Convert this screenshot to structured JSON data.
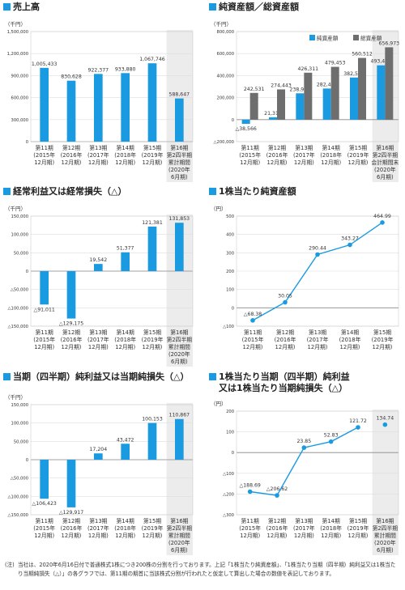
{
  "colors": {
    "accent": "#1a9ae0",
    "gray": "#6e6e6e",
    "highlight": "#ececec",
    "axis": "#cccccc",
    "text": "#333333"
  },
  "note": {
    "label": "(注)",
    "text": "当社は、2020年6月16日付で普通株式1株につき200株の分割を行っております。上記「1株当たり純資産額」、「1株当たり当期（四半期）純利益又は1株当たり当期純損失（△）」の各グラフでは、第11期の期首に当該株式分割が行われたと仮定して算出した場合の数値を表記しております。"
  },
  "chart_data": [
    {
      "id": "sales",
      "type": "bar",
      "title": "売上高",
      "unit": "（千円）",
      "categories": [
        [
          "第11期",
          "(2015年",
          "12月期)"
        ],
        [
          "第12期",
          "(2016年",
          "12月期)"
        ],
        [
          "第13期",
          "(2017年",
          "12月期)"
        ],
        [
          "第14期",
          "(2018年",
          "12月期)"
        ],
        [
          "第15期",
          "(2019年",
          "12月期)"
        ],
        [
          "第16期",
          "第2四半期",
          "累計期間",
          "(2020年",
          "6月期)"
        ]
      ],
      "ylim": [
        0,
        1500000
      ],
      "yticks": [
        0,
        300000,
        600000,
        900000,
        1200000,
        1500000
      ],
      "yticklabels": [
        "0",
        "300,000",
        "600,000",
        "900,000",
        "1,200,000",
        "1,500,000"
      ],
      "highlight_last": true,
      "series": [
        {
          "values": [
            1005433,
            830628,
            922377,
            933880,
            1067746,
            588647
          ],
          "labels": [
            "1,005,433",
            "830,628",
            "922,377",
            "933,880",
            "1,067,746",
            "588,647"
          ]
        }
      ]
    },
    {
      "id": "net_assets",
      "type": "bar",
      "title": "純資産額／総資産額",
      "unit": "（千円）",
      "categories": [
        [
          "第11期",
          "(2015年",
          "12月期)"
        ],
        [
          "第12期",
          "(2016年",
          "12月期)"
        ],
        [
          "第13期",
          "(2017年",
          "12月期)"
        ],
        [
          "第14期",
          "(2018年",
          "12月期)"
        ],
        [
          "第15期",
          "(2019年",
          "12月期)"
        ],
        [
          "第16期",
          "第2四半期",
          "会計期間末",
          "(2020年",
          "6月期)"
        ]
      ],
      "ylim": [
        -200000,
        800000
      ],
      "yticks": [
        -200000,
        0,
        200000,
        400000,
        600000,
        800000
      ],
      "yticklabels": [
        "△200,000",
        "0",
        "200,000",
        "400,000",
        "600,000",
        "800,000"
      ],
      "highlight_last": true,
      "legend": [
        "純資産額",
        "総資産額"
      ],
      "series": [
        {
          "name": "純資産額",
          "values": [
            -38566,
            21315,
            238970,
            282442,
            382585,
            493462
          ],
          "labels": [
            "△38,566",
            "21,315",
            "238,970",
            "282,442",
            "382,585",
            "493,462"
          ]
        },
        {
          "name": "総資産額",
          "values": [
            242531,
            274443,
            426311,
            479453,
            560512,
            656973
          ],
          "labels": [
            "242,531",
            "274,443",
            "426,311",
            "479,453",
            "560,512",
            "656,973"
          ]
        }
      ]
    },
    {
      "id": "ordinary_income",
      "type": "bar",
      "title": "経常利益又は経常損失（△）",
      "unit": "（千円）",
      "categories": [
        [
          "第11期",
          "(2015年",
          "12月期)"
        ],
        [
          "第12期",
          "(2016年",
          "12月期)"
        ],
        [
          "第13期",
          "(2017年",
          "12月期)"
        ],
        [
          "第14期",
          "(2018年",
          "12月期)"
        ],
        [
          "第15期",
          "(2019年",
          "12月期)"
        ],
        [
          "第16期",
          "第2四半期",
          "累計期間",
          "(2020年",
          "6月期)"
        ]
      ],
      "ylim": [
        -150000,
        150000
      ],
      "yticks": [
        -150000,
        -100000,
        -50000,
        0,
        50000,
        100000,
        150000
      ],
      "yticklabels": [
        "△150,000",
        "△100,000",
        "△50,000",
        "0",
        "50,000",
        "100,000",
        "150,000"
      ],
      "highlight_last": true,
      "series": [
        {
          "values": [
            -91011,
            -129175,
            19542,
            51377,
            121381,
            131853
          ],
          "labels": [
            "△91,011",
            "△129,175",
            "19,542",
            "51,377",
            "121,381",
            "131,853"
          ]
        }
      ]
    },
    {
      "id": "bps",
      "type": "line",
      "title": "1株当たり純資産額",
      "unit": "（円）",
      "categories": [
        [
          "第11期",
          "(2015年",
          "12月期)"
        ],
        [
          "第12期",
          "(2016年",
          "12月期)"
        ],
        [
          "第13期",
          "(2017年",
          "12月期)"
        ],
        [
          "第14期",
          "(2018年",
          "12月期)"
        ],
        [
          "第15期",
          "(2019年",
          "12月期)"
        ]
      ],
      "ylim": [
        -100,
        500
      ],
      "yticks": [
        -100,
        0,
        100,
        200,
        300,
        400,
        500
      ],
      "yticklabels": [
        "△100",
        "0",
        "100",
        "200",
        "300",
        "400",
        "500"
      ],
      "highlight_last": false,
      "series": [
        {
          "values": [
            -68.38,
            30.05,
            290.44,
            343.27,
            464.99
          ],
          "labels": [
            "△68.38",
            "30.05",
            "290.44",
            "343.27",
            "464.99"
          ]
        }
      ]
    },
    {
      "id": "net_income",
      "type": "bar",
      "title": "当期（四半期）純利益又は当期純損失（△）",
      "unit": "（千円）",
      "categories": [
        [
          "第11期",
          "(2015年",
          "12月期)"
        ],
        [
          "第12期",
          "(2016年",
          "12月期)"
        ],
        [
          "第13期",
          "(2017年",
          "12月期)"
        ],
        [
          "第14期",
          "(2018年",
          "12月期)"
        ],
        [
          "第15期",
          "(2019年",
          "12月期)"
        ],
        [
          "第16期",
          "第2四半期",
          "累計期間",
          "(2020年",
          "6月期)"
        ]
      ],
      "ylim": [
        -150000,
        150000
      ],
      "yticks": [
        -150000,
        -100000,
        -50000,
        0,
        50000,
        100000,
        150000
      ],
      "yticklabels": [
        "△150,000",
        "△100,000",
        "△50,000",
        "0",
        "50,000",
        "100,000",
        "150,000"
      ],
      "highlight_last": true,
      "series": [
        {
          "values": [
            -106423,
            -129917,
            17204,
            43472,
            100153,
            110867
          ],
          "labels": [
            "△106,423",
            "△129,917",
            "17,204",
            "43,472",
            "100,153",
            "110,867"
          ]
        }
      ]
    },
    {
      "id": "eps",
      "type": "line",
      "title": "1株当たり当期（四半期）純利益",
      "title2": "又は1株当たり当期純損失（△）",
      "unit": "（円）",
      "categories": [
        [
          "第11期",
          "(2015年",
          "12月期)"
        ],
        [
          "第12期",
          "(2016年",
          "12月期)"
        ],
        [
          "第13期",
          "(2017年",
          "12月期)"
        ],
        [
          "第14期",
          "(2018年",
          "12月期)"
        ],
        [
          "第15期",
          "(2019年",
          "12月期)"
        ],
        [
          "第16期",
          "第2四半期",
          "累計期間",
          "(2020年",
          "6月期)"
        ]
      ],
      "ylim": [
        -300,
        200
      ],
      "yticks": [
        -300,
        -200,
        -100,
        0,
        100,
        200
      ],
      "yticklabels": [
        "△300",
        "△200",
        "△100",
        "0",
        "100",
        "200"
      ],
      "highlight_last": true,
      "line_points": 5,
      "series": [
        {
          "values": [
            -188.69,
            -206.62,
            23.85,
            52.83,
            121.72,
            134.74
          ],
          "labels": [
            "△188.69",
            "△206.62",
            "23.85",
            "52.83",
            "121.72",
            "134.74"
          ]
        }
      ]
    }
  ]
}
